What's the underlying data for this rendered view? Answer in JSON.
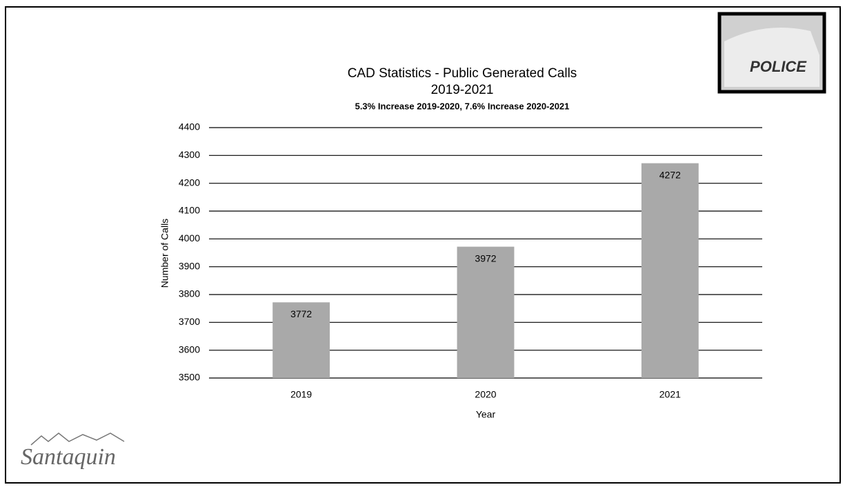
{
  "chart_data": {
    "type": "bar",
    "title": "CAD Statistics - Public Generated Calls",
    "subtitle": "2019-2021",
    "annotation": "5.3% Increase 2019-2020, 7.6% Increase 2020-2021",
    "x_label": "Year",
    "y_label": "Number of Calls",
    "categories": [
      "2019",
      "2020",
      "2021"
    ],
    "values": [
      3772,
      3972,
      4272
    ],
    "color": "#a9a9a9",
    "ylim": [
      3500,
      4400
    ],
    "yticks": [
      3500,
      3600,
      3700,
      3800,
      3900,
      4000,
      4100,
      4200,
      4300,
      4400
    ],
    "grid": true,
    "data_labels": true
  },
  "badge": "POLICE",
  "logo": "Santaquin"
}
